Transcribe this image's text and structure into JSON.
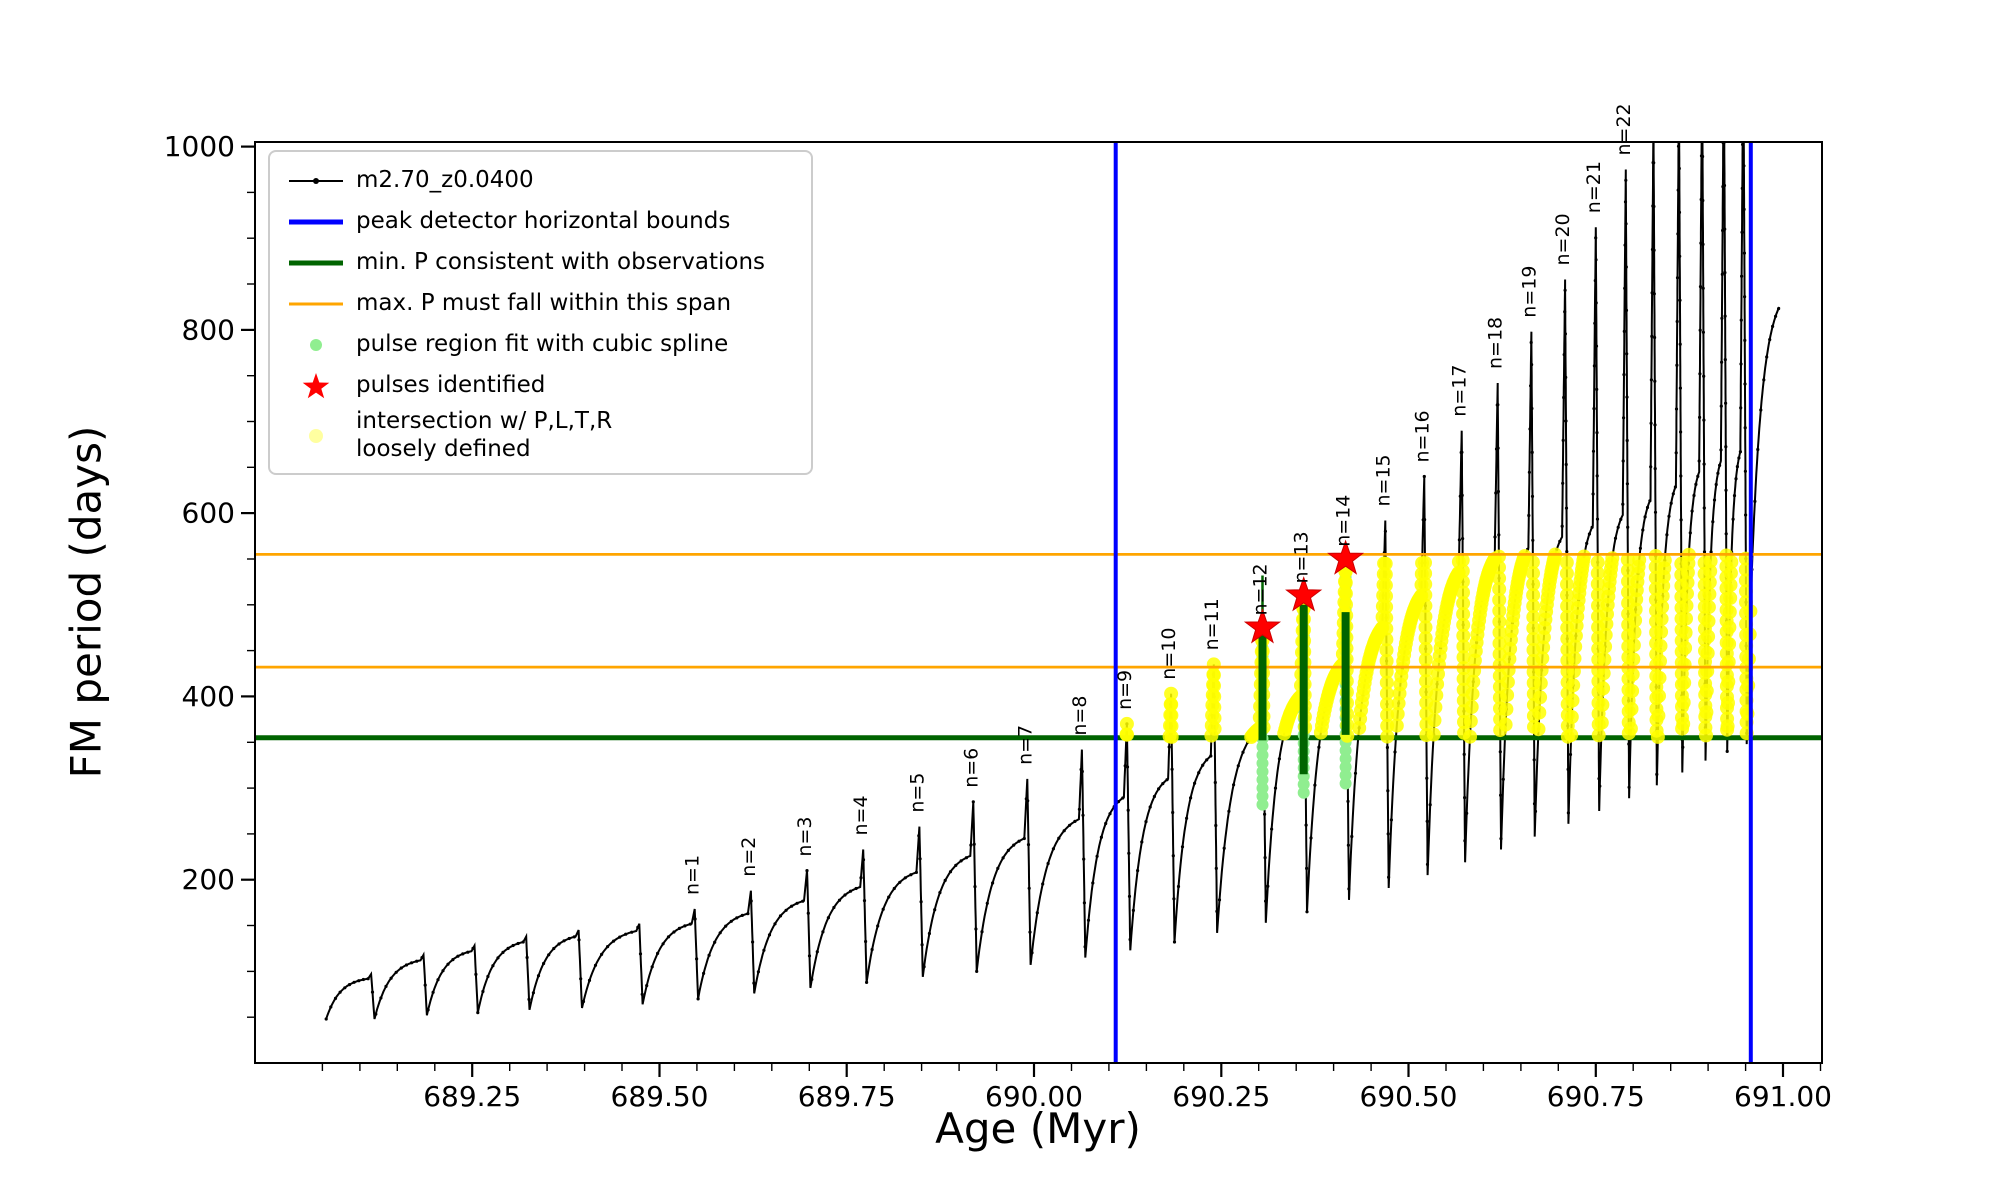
{
  "chart_data": {
    "type": "line",
    "title": "",
    "xlabel": "Age (Myr)",
    "ylabel": "FM period (days)",
    "xlim": [
      688.96,
      691.052
    ],
    "ylim": [
      0,
      1005
    ],
    "x_ticks": [
      689.25,
      689.5,
      689.75,
      690.0,
      690.25,
      690.5,
      690.75,
      691.0
    ],
    "x_tick_labels": [
      "689.25",
      "689.50",
      "689.75",
      "690.00",
      "690.25",
      "690.50",
      "690.75",
      "691.00"
    ],
    "x_minor_step": 0.05,
    "y_ticks": [
      200,
      400,
      600,
      800,
      1000
    ],
    "y_tick_labels": [
      "200",
      "400",
      "600",
      "800",
      "1000"
    ],
    "y_minor_step": 50,
    "series_label": "m2.70_z0.0400",
    "peak_detector_bounds_age": [
      690.109,
      690.957
    ],
    "min_period_days": 355,
    "max_period_span_days": [
      432,
      555
    ],
    "pulses_identified": [
      {
        "age": 690.305,
        "period": 475
      },
      {
        "age": 690.36,
        "period": 510
      },
      {
        "age": 690.416,
        "period": 550
      }
    ],
    "spline_fit_columns": [
      {
        "age": 690.305,
        "p0": 282,
        "p1": 465
      },
      {
        "age": 690.36,
        "p0": 295,
        "p1": 500
      },
      {
        "age": 690.416,
        "p0": 305,
        "p1": 540
      }
    ],
    "pulse_region_bars": [
      {
        "age": 690.305,
        "p0": 352,
        "p1": 466,
        "w": 8
      },
      {
        "age": 690.305,
        "p0": 466,
        "p1": 532,
        "w": 2.5
      },
      {
        "age": 690.36,
        "p0": 315,
        "p1": 500,
        "w": 8
      },
      {
        "age": 690.416,
        "p0": 358,
        "p1": 492,
        "w": 8
      }
    ],
    "intersection_band": {
      "age_min": 690.109,
      "age_max": 690.957,
      "p_min": 355,
      "p_max": 555
    },
    "track": {
      "start": {
        "t": 689.055,
        "P": 48
      },
      "end": {
        "t": 690.995,
        "P": 825
      },
      "rise_width": 0.004,
      "fall_width": 0.0045,
      "pulses": [
        {
          "label": "",
          "t": 689.115,
          "hump": 92,
          "spike": 97,
          "dip": 48
        },
        {
          "label": "",
          "t": 689.185,
          "hump": 112,
          "spike": 118,
          "dip": 52
        },
        {
          "label": "",
          "t": 689.253,
          "hump": 122,
          "spike": 128,
          "dip": 55
        },
        {
          "label": "",
          "t": 689.322,
          "hump": 132,
          "spike": 138,
          "dip": 58
        },
        {
          "label": "",
          "t": 689.392,
          "hump": 138,
          "spike": 145,
          "dip": 60
        },
        {
          "label": "",
          "t": 689.473,
          "hump": 144,
          "spike": 152,
          "dip": 64
        },
        {
          "label": "n=1",
          "t": 689.547,
          "hump": 152,
          "spike": 168,
          "dip": 70
        },
        {
          "label": "n=2",
          "t": 689.622,
          "hump": 163,
          "spike": 188,
          "dip": 76
        },
        {
          "label": "n=3",
          "t": 689.697,
          "hump": 177,
          "spike": 210,
          "dip": 82
        },
        {
          "label": "n=4",
          "t": 689.772,
          "hump": 192,
          "spike": 233,
          "dip": 88
        },
        {
          "label": "n=5",
          "t": 689.847,
          "hump": 208,
          "spike": 258,
          "dip": 94
        },
        {
          "label": "n=6",
          "t": 689.919,
          "hump": 226,
          "spike": 285,
          "dip": 100
        },
        {
          "label": "n=7",
          "t": 689.991,
          "hump": 245,
          "spike": 310,
          "dip": 107
        },
        {
          "label": "n=8",
          "t": 690.064,
          "hump": 266,
          "spike": 342,
          "dip": 115
        },
        {
          "label": "n=9",
          "t": 690.124,
          "hump": 290,
          "spike": 370,
          "dip": 123
        },
        {
          "label": "n=10",
          "t": 690.183,
          "hump": 310,
          "spike": 403,
          "dip": 132
        },
        {
          "label": "n=11",
          "t": 690.24,
          "hump": 335,
          "spike": 435,
          "dip": 142
        },
        {
          "label": "n=12",
          "t": 690.305,
          "hump": 365,
          "spike": 473,
          "dip": 153
        },
        {
          "label": "n=13",
          "t": 690.36,
          "hump": 400,
          "spike": 508,
          "dip": 165
        },
        {
          "label": "n=14",
          "t": 690.416,
          "hump": 435,
          "spike": 548,
          "dip": 178
        },
        {
          "label": "n=15",
          "t": 690.469,
          "hump": 475,
          "spike": 592,
          "dip": 191
        },
        {
          "label": "n=16",
          "t": 690.521,
          "hump": 510,
          "spike": 640,
          "dip": 205
        },
        {
          "label": "n=17",
          "t": 690.571,
          "hump": 535,
          "spike": 690,
          "dip": 219
        },
        {
          "label": "n=18",
          "t": 690.619,
          "hump": 550,
          "spike": 742,
          "dip": 233
        },
        {
          "label": "n=19",
          "t": 690.664,
          "hump": 562,
          "spike": 798,
          "dip": 247
        },
        {
          "label": "n=20",
          "t": 690.709,
          "hump": 574,
          "spike": 855,
          "dip": 261
        },
        {
          "label": "n=21",
          "t": 690.75,
          "hump": 586,
          "spike": 912,
          "dip": 275
        },
        {
          "label": "n=22",
          "t": 690.79,
          "hump": 598,
          "spike": 975,
          "dip": 289
        },
        {
          "label": "",
          "t": 690.827,
          "hump": 615,
          "spike": 1030,
          "dip": 303
        },
        {
          "label": "",
          "t": 690.861,
          "hump": 630,
          "spike": 1060,
          "dip": 317
        },
        {
          "label": "",
          "t": 690.892,
          "hump": 645,
          "spike": 1085,
          "dip": 330
        },
        {
          "label": "",
          "t": 690.921,
          "hump": 657,
          "spike": 1100,
          "dip": 340
        },
        {
          "label": "",
          "t": 690.947,
          "hump": 667,
          "spike": 1110,
          "dip": 348
        }
      ]
    },
    "colors": {
      "track": "#000000",
      "bounds": "#0000ff",
      "min_p": "#006400",
      "max_p": "#ffa500",
      "spline": "#90ee90",
      "pulse": "#ff0000",
      "intersection": "#ffff00",
      "background": "#ffffff"
    }
  },
  "legend": {
    "items": [
      {
        "label": "m2.70_z0.0400",
        "marker": "line-dot",
        "color": "#000000"
      },
      {
        "label": "peak detector horizontal bounds",
        "marker": "line",
        "color": "#0000ff",
        "thickness": 5
      },
      {
        "label": "min. P consistent with observations",
        "marker": "line",
        "color": "#006400",
        "thickness": 5
      },
      {
        "label": "max. P must fall within this span",
        "marker": "line",
        "color": "#ffa500",
        "thickness": 3
      },
      {
        "label": "pulse region fit with cubic spline",
        "marker": "dot",
        "color": "#90ee90",
        "size": 6
      },
      {
        "label": "pulses identified",
        "marker": "star",
        "color": "#ff0000"
      },
      {
        "label": "intersection w/ P,L,T,R\nloosely defined",
        "marker": "dot",
        "color": "#ffffa0",
        "size": 7
      }
    ]
  }
}
